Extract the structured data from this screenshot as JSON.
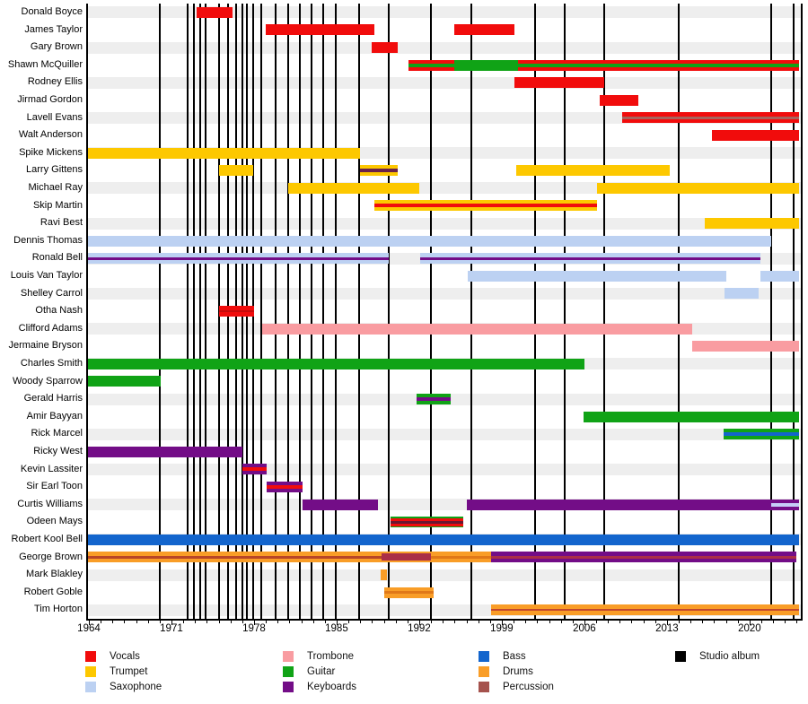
{
  "chart_data": {
    "type": "gantt-timeline",
    "description": "Band members timeline: colored bars show instrument roles per member over years; vertical black lines mark studio albums",
    "x_axis": {
      "min": 1963.85,
      "max": 2024.42,
      "major_ticks": [
        1964,
        1971,
        1978,
        1985,
        1992,
        1999,
        2006,
        2013,
        2020
      ],
      "minor_tick_interval": 1,
      "minor_tick_start": 1964,
      "minor_tick_end": 2024
    },
    "palette": {
      "vocals": "#f10c0c",
      "trumpet": "#fdc800",
      "saxophone": "#bcd1f2",
      "trombone": "#f99ca1",
      "guitar": "#10a316",
      "keyboards": "#730d87",
      "bass": "#1365cd",
      "drums": "#f99d27",
      "percussion": "#a5524d",
      "album": "#000000",
      "vocals_dark": "#c50b0b",
      "drums_dark": "#e07818",
      "lavender": "#c6ccf8",
      "george_core": "#b84527",
      "percussion_band": "#aa2e47",
      "larry_core": "#6b2249",
      "lavell_core": "#a8625c",
      "tim_core": "#c2462e",
      "wine": "#6b1830",
      "row_stripe": "#eeeeee"
    },
    "albums": [
      1970.0,
      1972.4,
      1972.9,
      1973.4,
      1973.9,
      1975.0,
      1975.8,
      1976.5,
      1977.0,
      1977.4,
      1977.9,
      1978.6,
      1979.8,
      1980.9,
      1981.9,
      1982.9,
      1983.9,
      1984.9,
      1986.9,
      1989.4,
      1993.0,
      1996.4,
      2001.8,
      2004.3,
      2007.7,
      2014.0,
      2021.8,
      2023.7
    ],
    "members": [
      {
        "name": "Donald Boyce",
        "segments": [
          {
            "start": 1973.1,
            "end": 1976.2,
            "stripes": [
              [
                "vocals",
                1
              ]
            ]
          }
        ]
      },
      {
        "name": "James Taylor",
        "segments": [
          {
            "start": 1979.0,
            "end": 1988.2,
            "stripes": [
              [
                "vocals",
                1
              ]
            ]
          },
          {
            "start": 1995.0,
            "end": 2000.1,
            "stripes": [
              [
                "vocals",
                1
              ]
            ]
          }
        ]
      },
      {
        "name": "Gary Brown",
        "segments": [
          {
            "start": 1988.0,
            "end": 1990.2,
            "stripes": [
              [
                "vocals",
                1
              ]
            ]
          }
        ]
      },
      {
        "name": "Shawn McQuiller",
        "segments": [
          {
            "start": 1991.1,
            "end": 1995.0,
            "stripes": [
              [
                "vocals",
                1
              ],
              [
                "guitar",
                1
              ],
              [
                "vocals",
                1
              ]
            ]
          },
          {
            "start": 1995.0,
            "end": 2000.4,
            "stripes": [
              [
                "guitar",
                1
              ]
            ]
          },
          {
            "start": 2000.4,
            "end": 2024.2,
            "stripes": [
              [
                "vocals",
                1
              ],
              [
                "guitar",
                1
              ],
              [
                "vocals",
                1
              ]
            ]
          }
        ]
      },
      {
        "name": "Rodney Ellis",
        "segments": [
          {
            "start": 2000.1,
            "end": 2007.7,
            "stripes": [
              [
                "vocals",
                1
              ]
            ]
          }
        ]
      },
      {
        "name": "Jirmad Gordon",
        "segments": [
          {
            "start": 2007.3,
            "end": 2010.6,
            "stripes": [
              [
                "vocals",
                1
              ]
            ]
          }
        ]
      },
      {
        "name": "Lavell Evans",
        "segments": [
          {
            "start": 2009.2,
            "end": 2024.2,
            "stripes": [
              [
                "vocals",
                2
              ],
              [
                "lavell_core",
                1
              ],
              [
                "vocals",
                2
              ]
            ]
          }
        ]
      },
      {
        "name": "Walt Anderson",
        "segments": [
          {
            "start": 2016.8,
            "end": 2024.2,
            "stripes": [
              [
                "vocals",
                1
              ]
            ]
          }
        ]
      },
      {
        "name": "Spike Mickens",
        "segments": [
          {
            "start": 1963.85,
            "end": 1987.0,
            "stripes": [
              [
                "trumpet",
                1
              ]
            ]
          }
        ]
      },
      {
        "name": "Larry Gittens",
        "segments": [
          {
            "start": 1975.0,
            "end": 1977.9,
            "stripes": [
              [
                "trumpet",
                1
              ]
            ]
          },
          {
            "start": 1987.0,
            "end": 1990.2,
            "stripes": [
              [
                "trumpet",
                1
              ],
              [
                "larry_core",
                1
              ],
              [
                "trumpet",
                1
              ]
            ]
          },
          {
            "start": 2000.2,
            "end": 2013.2,
            "stripes": [
              [
                "trumpet",
                1
              ]
            ]
          }
        ]
      },
      {
        "name": "Michael Ray",
        "segments": [
          {
            "start": 1980.9,
            "end": 1992.0,
            "stripes": [
              [
                "trumpet",
                1
              ]
            ]
          },
          {
            "start": 2007.1,
            "end": 2024.2,
            "stripes": [
              [
                "trumpet",
                1
              ]
            ]
          }
        ]
      },
      {
        "name": "Skip Martin",
        "segments": [
          {
            "start": 1988.2,
            "end": 2007.1,
            "stripes": [
              [
                "trumpet",
                1
              ],
              [
                "vocals",
                1
              ],
              [
                "trumpet",
                1
              ]
            ]
          }
        ]
      },
      {
        "name": "Ravi Best",
        "segments": [
          {
            "start": 2016.2,
            "end": 2024.2,
            "stripes": [
              [
                "trumpet",
                1
              ]
            ]
          }
        ]
      },
      {
        "name": "Dennis Thomas",
        "segments": [
          {
            "start": 1963.85,
            "end": 2021.8,
            "stripes": [
              [
                "saxophone",
                1
              ]
            ]
          }
        ]
      },
      {
        "name": "Ronald Bell",
        "segments": [
          {
            "start": 1963.85,
            "end": 1989.4,
            "stripes": [
              [
                "saxophone",
                3
              ],
              [
                "keyboards",
                2
              ],
              [
                "saxophone",
                3
              ]
            ]
          },
          {
            "start": 1992.1,
            "end": 2020.9,
            "stripes": [
              [
                "saxophone",
                3
              ],
              [
                "keyboards",
                2
              ],
              [
                "saxophone",
                3
              ]
            ]
          }
        ]
      },
      {
        "name": "Louis Van Taylor",
        "segments": [
          {
            "start": 1996.1,
            "end": 2018.0,
            "stripes": [
              [
                "saxophone",
                1
              ]
            ]
          },
          {
            "start": 2020.9,
            "end": 2024.2,
            "stripes": [
              [
                "saxophone",
                1
              ]
            ]
          }
        ]
      },
      {
        "name": "Shelley Carrol",
        "segments": [
          {
            "start": 2017.9,
            "end": 2020.8,
            "stripes": [
              [
                "saxophone",
                1
              ]
            ]
          }
        ]
      },
      {
        "name": "Otha Nash",
        "segments": [
          {
            "start": 1975.0,
            "end": 1978.0,
            "stripes": [
              [
                "vocals",
                2
              ],
              [
                "vocals_dark",
                1
              ],
              [
                "vocals",
                2
              ]
            ]
          }
        ]
      },
      {
        "name": "Clifford Adams",
        "segments": [
          {
            "start": 1978.7,
            "end": 2015.1,
            "stripes": [
              [
                "trombone",
                1
              ]
            ]
          }
        ]
      },
      {
        "name": "Jermaine Bryson",
        "segments": [
          {
            "start": 2015.1,
            "end": 2024.2,
            "stripes": [
              [
                "trombone",
                1
              ]
            ]
          }
        ]
      },
      {
        "name": "Charles Smith",
        "segments": [
          {
            "start": 1963.85,
            "end": 2006.0,
            "stripes": [
              [
                "guitar",
                1
              ]
            ]
          }
        ]
      },
      {
        "name": "Woody Sparrow",
        "segments": [
          {
            "start": 1963.85,
            "end": 1970.1,
            "stripes": [
              [
                "guitar",
                1
              ]
            ]
          }
        ]
      },
      {
        "name": "Gerald Harris",
        "segments": [
          {
            "start": 1991.8,
            "end": 1994.7,
            "stripes": [
              [
                "guitar",
                1
              ],
              [
                "keyboards",
                1
              ],
              [
                "guitar",
                1
              ]
            ]
          }
        ]
      },
      {
        "name": "Amir Bayyan",
        "segments": [
          {
            "start": 2005.9,
            "end": 2024.2,
            "stripes": [
              [
                "guitar",
                1
              ]
            ]
          }
        ]
      },
      {
        "name": "Rick Marcel",
        "segments": [
          {
            "start": 2017.8,
            "end": 2024.2,
            "stripes": [
              [
                "guitar",
                1
              ],
              [
                "bass",
                1
              ],
              [
                "guitar",
                1
              ]
            ]
          }
        ]
      },
      {
        "name": "Ricky West",
        "segments": [
          {
            "start": 1963.85,
            "end": 1977.0,
            "stripes": [
              [
                "keyboards",
                1
              ]
            ]
          }
        ]
      },
      {
        "name": "Kevin Lassiter",
        "segments": [
          {
            "start": 1977.0,
            "end": 1979.1,
            "stripes": [
              [
                "keyboards",
                1
              ],
              [
                "vocals",
                1
              ],
              [
                "keyboards",
                1
              ]
            ]
          }
        ]
      },
      {
        "name": "Sir Earl Toon",
        "segments": [
          {
            "start": 1979.1,
            "end": 1982.1,
            "stripes": [
              [
                "keyboards",
                1
              ],
              [
                "vocals",
                1
              ],
              [
                "keyboards",
                1
              ]
            ]
          }
        ]
      },
      {
        "name": "Curtis Williams",
        "segments": [
          {
            "start": 1982.1,
            "end": 1988.5,
            "stripes": [
              [
                "keyboards",
                1
              ]
            ]
          },
          {
            "start": 1996.0,
            "end": 2021.8,
            "stripes": [
              [
                "keyboards",
                1
              ]
            ]
          },
          {
            "start": 2021.8,
            "end": 2024.2,
            "stripes": [
              [
                "keyboards",
                1
              ],
              [
                "lavender",
                1
              ],
              [
                "keyboards",
                1
              ]
            ]
          }
        ]
      },
      {
        "name": "Odeen Mays",
        "segments": [
          {
            "start": 1989.6,
            "end": 1995.7,
            "stripes": [
              [
                "guitar",
                1
              ],
              [
                "vocals",
                2
              ],
              [
                "wine",
                2
              ],
              [
                "vocals",
                2
              ],
              [
                "guitar",
                1
              ]
            ]
          }
        ]
      },
      {
        "name": "Robert Kool Bell",
        "segments": [
          {
            "start": 1963.85,
            "end": 2024.2,
            "stripes": [
              [
                "bass",
                1
              ]
            ]
          }
        ]
      },
      {
        "name": "George Brown",
        "segments": [
          {
            "start": 1963.85,
            "end": 1988.8,
            "stripes": [
              [
                "drums",
                2
              ],
              [
                "george_core",
                1
              ],
              [
                "drums",
                2
              ]
            ]
          },
          {
            "start": 1988.8,
            "end": 1993.0,
            "stripes": [
              [
                "drums",
                1
              ],
              [
                "percussion_band",
                4
              ],
              [
                "drums",
                1
              ]
            ]
          },
          {
            "start": 1993.0,
            "end": 1998.1,
            "stripes": [
              [
                "drums",
                2
              ],
              [
                "drums_dark",
                1
              ],
              [
                "drums",
                2
              ]
            ]
          },
          {
            "start": 1998.1,
            "end": 2023.95,
            "stripes": [
              [
                "keyboards",
                2
              ],
              [
                "percussion_band",
                1
              ],
              [
                "keyboards",
                2
              ]
            ]
          }
        ]
      },
      {
        "name": "Mark Blakley",
        "segments": [
          {
            "start": 1988.7,
            "end": 1989.3,
            "stripes": [
              [
                "drums",
                1
              ]
            ]
          }
        ]
      },
      {
        "name": "Robert Goble",
        "segments": [
          {
            "start": 1989.0,
            "end": 1993.2,
            "stripes": [
              [
                "drums",
                2
              ],
              [
                "drums_dark",
                1
              ],
              [
                "drums",
                2
              ]
            ]
          }
        ]
      },
      {
        "name": "Tim Horton",
        "segments": [
          {
            "start": 1998.1,
            "end": 2024.2,
            "stripes": [
              [
                "drums",
                2
              ],
              [
                "tim_core",
                1
              ],
              [
                "drums",
                2
              ]
            ]
          }
        ]
      }
    ],
    "legend": {
      "columns": [
        [
          {
            "label": "Vocals",
            "color": "vocals"
          },
          {
            "label": "Trumpet",
            "color": "trumpet"
          },
          {
            "label": "Saxophone",
            "color": "saxophone"
          }
        ],
        [
          {
            "label": "Trombone",
            "color": "trombone"
          },
          {
            "label": "Guitar",
            "color": "guitar"
          },
          {
            "label": "Keyboards",
            "color": "keyboards"
          }
        ],
        [
          {
            "label": "Bass",
            "color": "bass"
          },
          {
            "label": "Drums",
            "color": "drums"
          },
          {
            "label": "Percussion",
            "color": "percussion"
          }
        ],
        [
          {
            "label": "Studio album",
            "color": "album"
          }
        ]
      ]
    }
  }
}
